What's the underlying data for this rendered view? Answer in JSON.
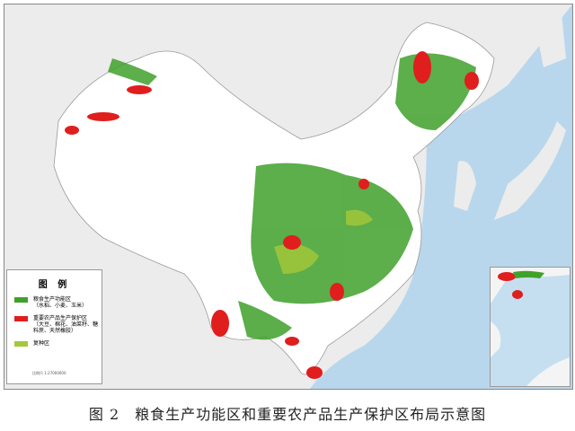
{
  "legend": {
    "title": "图 例",
    "items": [
      {
        "label": "粮食生产功能区",
        "sub": "（水稻、小麦、玉米）",
        "color": "#3fa12a"
      },
      {
        "label": "重要农产品生产保护区",
        "sub": "（大豆、棉花、油菜籽、糖料蔗、天然橡胶）",
        "color": "#e01e1e"
      },
      {
        "label": "复种区",
        "sub": "",
        "color": "#a5c73a"
      }
    ],
    "scale": "比例尺 1:27000000"
  },
  "colors": {
    "sea": "#b9d7ec",
    "land": "#ffffff",
    "neighbor": "#ececec"
  },
  "caption": "图 2　粮食生产功能区和重要农产品生产保护区布局示意图"
}
